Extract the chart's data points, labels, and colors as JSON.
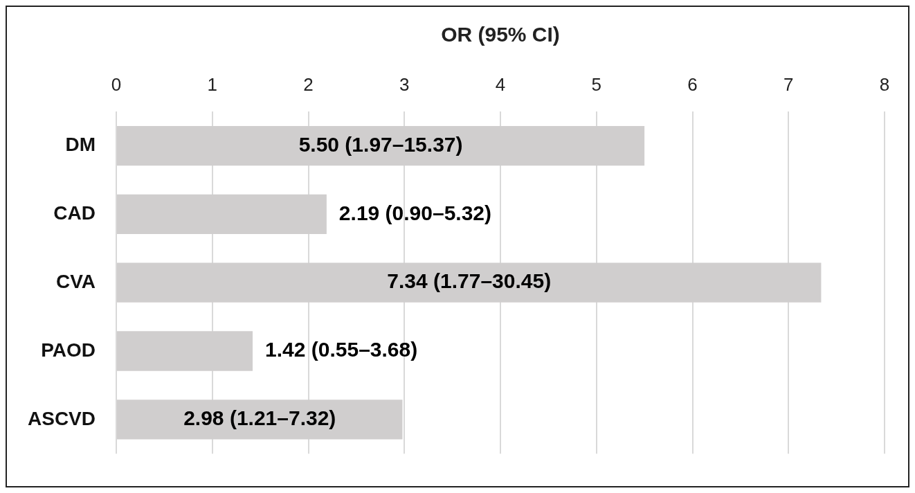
{
  "chart_data": {
    "type": "bar",
    "orientation": "horizontal",
    "xlabel": "OR (95% CI)",
    "categories": [
      "DM",
      "CAD",
      "CVA",
      "PAOD",
      "ASCVD"
    ],
    "values": [
      5.5,
      2.19,
      7.34,
      1.42,
      2.98
    ],
    "value_labels": [
      "5.50 (1.97–15.37)",
      "2.19 (0.90–5.32)",
      "7.34 (1.77–30.45)",
      "1.42 (0.55–3.68)",
      "2.98 (1.21–7.32)"
    ],
    "color": "#d0cece",
    "xlim": [
      0,
      8
    ],
    "xticks": [
      0,
      1,
      2,
      3,
      4,
      5,
      6,
      7,
      8
    ],
    "grid": "x"
  }
}
